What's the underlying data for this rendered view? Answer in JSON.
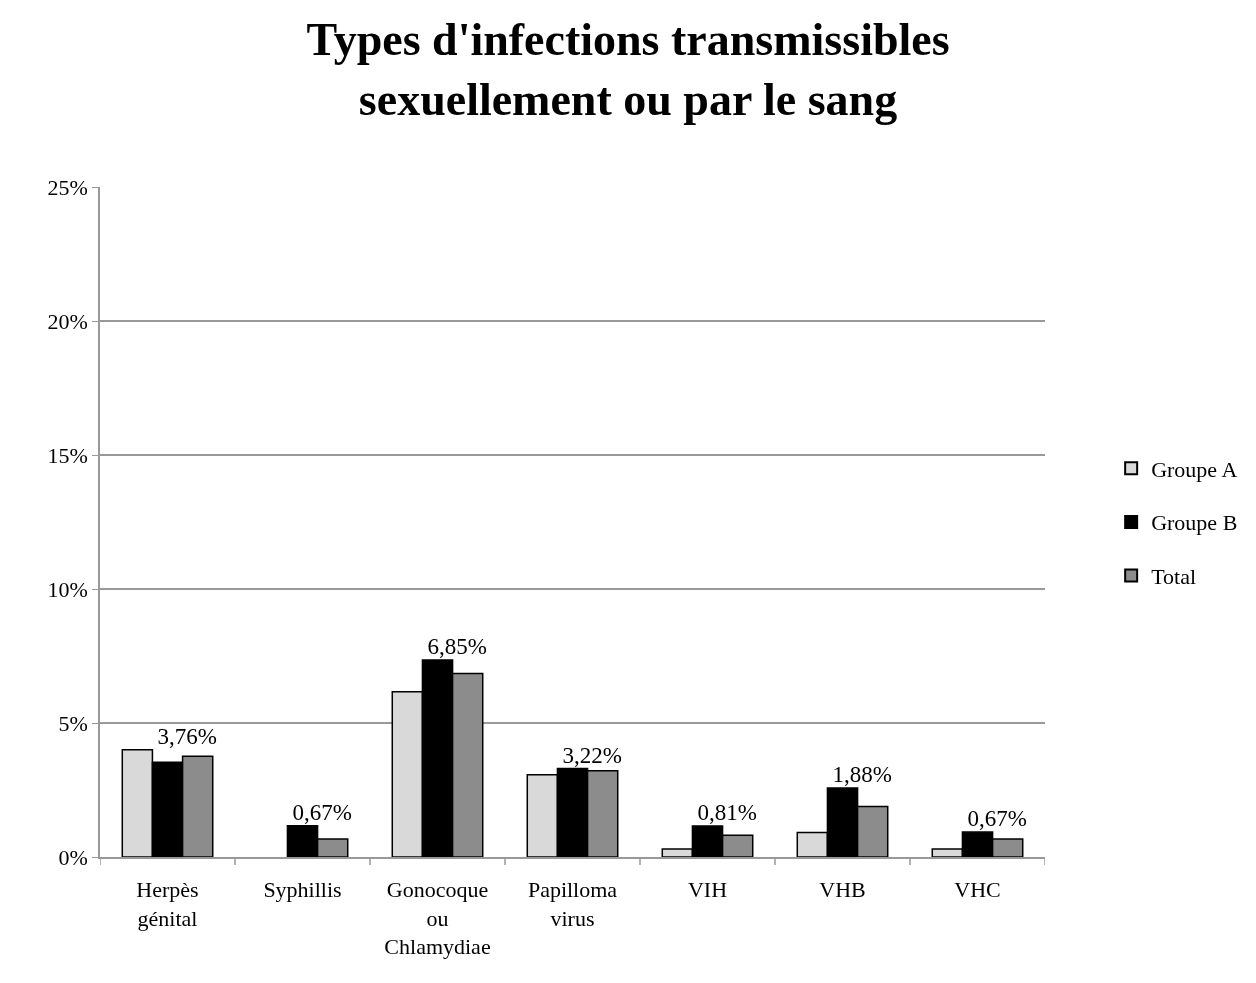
{
  "chart_data": {
    "type": "bar",
    "title": "Types d'infections transmissibles\nsexuellement ou par le sang",
    "categories": [
      "Herpès génital",
      "Syphillis",
      "Gonocoque ou Chlamydiae",
      "Papilloma virus",
      "VIH",
      "VHB",
      "VHC"
    ],
    "series": [
      {
        "name": "Groupe A",
        "color": "#d9d9d9",
        "values": [
          4.0,
          0,
          6.17,
          3.07,
          0.3,
          0.91,
          0.3
        ]
      },
      {
        "name": "Groupe B",
        "color": "#000000",
        "values": [
          3.54,
          1.17,
          7.35,
          3.3,
          1.16,
          2.57,
          0.93
        ]
      },
      {
        "name": "Total",
        "color": "#8c8c8c",
        "values": [
          3.76,
          0.67,
          6.85,
          3.22,
          0.81,
          1.88,
          0.67
        ],
        "value_labels": [
          "3,76%",
          "0,67%",
          "6,85%",
          "3,22%",
          "0,81%",
          "1,88%",
          "0,67%"
        ]
      }
    ],
    "ylim": [
      0,
      25
    ],
    "yticks": [
      {
        "value": 0,
        "label": "0%"
      },
      {
        "value": 5,
        "label": "5%"
      },
      {
        "value": 10,
        "label": "10%"
      },
      {
        "value": 15,
        "label": "15%"
      },
      {
        "value": 20,
        "label": "20%"
      },
      {
        "value": 25,
        "label": "25%"
      }
    ],
    "grid": "y",
    "legend": "right"
  }
}
